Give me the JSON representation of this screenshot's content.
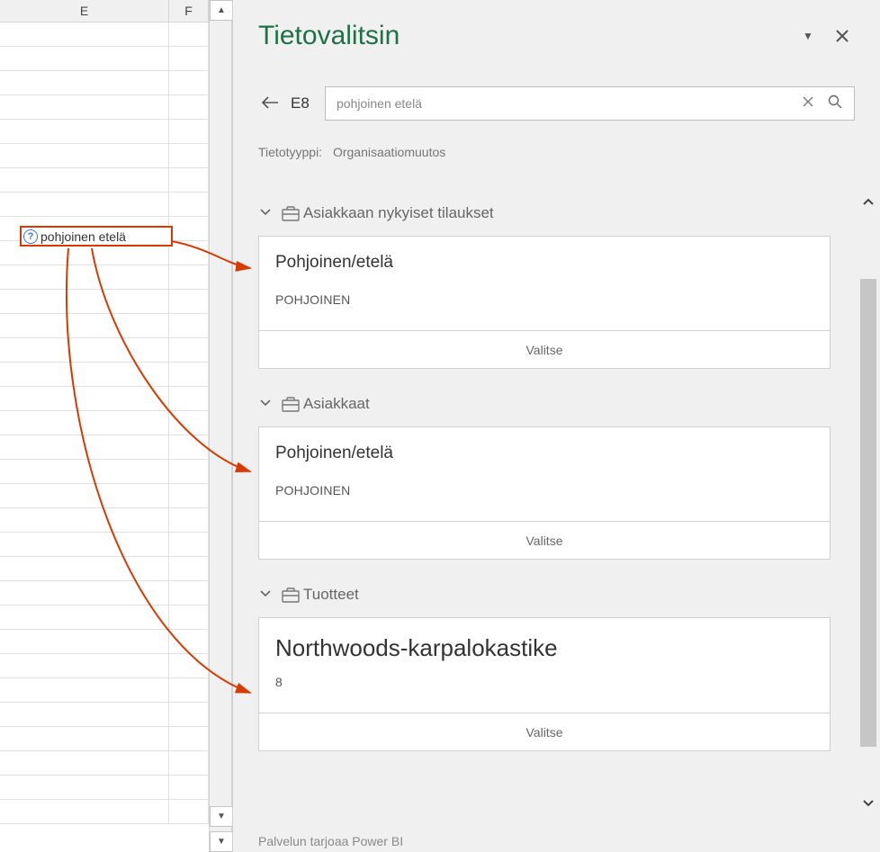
{
  "sheet": {
    "col_e_header": "E",
    "col_f_header": "F",
    "callout_text": "pohjoinen etelä"
  },
  "pane": {
    "title": "Tietovalitsin",
    "back_cell": "E8",
    "search_value": "pohjoinen etelä",
    "type_label": "Tietotyyppi:",
    "type_value": "Organisaatiomuutos",
    "footer": "Palvelun tarjoaa Power BI"
  },
  "groups": [
    {
      "header": "Asiakkaan nykyiset tilaukset",
      "card": {
        "title": "Pohjoinen/etelä",
        "subtitle": "POHJOINEN",
        "select": "Valitse",
        "big": false
      }
    },
    {
      "header": "Asiakkaat",
      "card": {
        "title": "Pohjoinen/etelä",
        "subtitle": "POHJOINEN",
        "select": "Valitse",
        "big": false
      }
    },
    {
      "header": "Tuotteet",
      "card": {
        "title": "Northwoods-karpalokastike",
        "subtitle": "8",
        "select": "Valitse",
        "big": true
      }
    }
  ],
  "style": {
    "accent_green": "#1e7145",
    "annotation_red": "#d83b01",
    "border_gray": "#d0d0d0",
    "scroll_thumb": "#c6c6c6",
    "background": "#f0f0f0",
    "card_bg": "#ffffff"
  }
}
